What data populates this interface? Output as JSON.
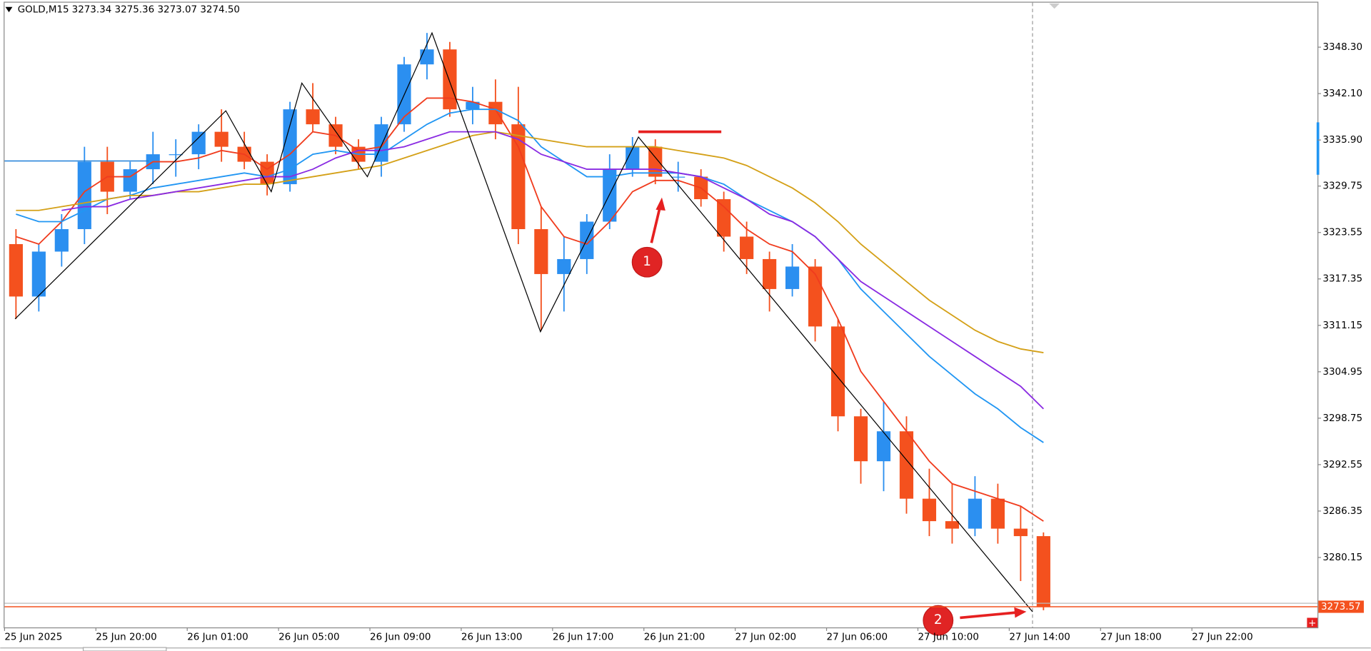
{
  "chart_data": {
    "type": "candlestick",
    "title": "GOLD,M15",
    "ohlc_text": "3273.34 3275.36 3273.07 3274.50",
    "up_color": "#2b8ff0",
    "down_color": "#f4511e",
    "candles": [
      [
        3322,
        3324,
        3312,
        3315
      ],
      [
        3315,
        3322,
        3313,
        3321
      ],
      [
        3321,
        3326,
        3319,
        3324
      ],
      [
        3324,
        3335,
        3322,
        3333
      ],
      [
        3333,
        3335,
        3326,
        3329
      ],
      [
        3329,
        3333,
        3328,
        3332
      ],
      [
        3332,
        3337,
        3330,
        3334
      ],
      [
        3334,
        3336,
        3331,
        3334
      ],
      [
        3334,
        3338,
        3332,
        3337
      ],
      [
        3337,
        3340,
        3333,
        3335
      ],
      [
        3335,
        3337,
        3332,
        3333
      ],
      [
        3333,
        3334,
        3328.5,
        3330
      ],
      [
        3330,
        3341,
        3329,
        3340
      ],
      [
        3340,
        3343.5,
        3337,
        3338
      ],
      [
        3338,
        3339,
        3334,
        3335
      ],
      [
        3335,
        3336,
        3332,
        3333
      ],
      [
        3333,
        3339,
        3331,
        3338
      ],
      [
        3338,
        3347,
        3337,
        3346
      ],
      [
        3346,
        3350.2,
        3344,
        3348
      ],
      [
        3348,
        3349,
        3339,
        3340
      ],
      [
        3340,
        3343,
        3338,
        3341
      ],
      [
        3341,
        3344,
        3336,
        3338
      ],
      [
        3338,
        3343,
        3322,
        3324
      ],
      [
        3324,
        3327,
        3310.5,
        3318
      ],
      [
        3318,
        3323,
        3313,
        3320
      ],
      [
        3320,
        3326,
        3318,
        3325
      ],
      [
        3325,
        3334,
        3324,
        3332
      ],
      [
        3332,
        3336.3,
        3331,
        3335
      ],
      [
        3335,
        3336,
        3330,
        3331
      ],
      [
        3331,
        3333,
        3329,
        3331
      ],
      [
        3331,
        3332,
        3327,
        3328
      ],
      [
        3328,
        3329,
        3321,
        3323
      ],
      [
        3323,
        3325,
        3318,
        3320
      ],
      [
        3320,
        3321,
        3313,
        3316
      ],
      [
        3316,
        3322,
        3315,
        3319
      ],
      [
        3319,
        3320,
        3309,
        3311
      ],
      [
        3311,
        3312,
        3297,
        3299
      ],
      [
        3299,
        3300,
        3290,
        3293
      ],
      [
        3293,
        3301,
        3289,
        3297
      ],
      [
        3297,
        3299,
        3286,
        3288
      ],
      [
        3288,
        3292,
        3283,
        3285
      ],
      [
        3285,
        3290,
        3282,
        3284
      ],
      [
        3284,
        3291,
        3283,
        3288
      ],
      [
        3288,
        3290,
        3282,
        3284
      ],
      [
        3284,
        3287,
        3277,
        3283
      ],
      [
        3283,
        3283.5,
        3273.1,
        3273.6
      ]
    ],
    "series": [
      {
        "color": "#f03c1e",
        "values": [
          3323,
          3322,
          3325,
          3329,
          3331,
          3331,
          3333,
          3333,
          3333.5,
          3334.5,
          3334,
          3332,
          3334,
          3337,
          3336.5,
          3334.5,
          3335,
          3339,
          3341.5,
          3341.5,
          3341,
          3340,
          3335,
          3327,
          3323,
          3322,
          3325,
          3329,
          3330.5,
          3330.5,
          3329.5,
          3327,
          3324,
          3322,
          3321,
          3318,
          3312,
          3305,
          3301,
          3297,
          3293,
          3290,
          3289,
          3288,
          3287,
          3285
        ]
      },
      {
        "color": "#2196f3",
        "values": [
          3326,
          3325,
          3325,
          3326.5,
          3328,
          3328.5,
          3329.5,
          3330,
          3330.5,
          3331,
          3331.5,
          3331,
          3332,
          3334,
          3334.5,
          3334,
          3334,
          3336,
          3338,
          3339.5,
          3340,
          3340,
          3338.5,
          3335,
          3333,
          3331,
          3331,
          3331.5,
          3331.5,
          3331.5,
          3331,
          3330,
          3328,
          3326.5,
          3325,
          3323,
          3320,
          3316,
          3313,
          3310,
          3307,
          3304.5,
          3302,
          3300,
          3297.5,
          3295.5
        ]
      },
      {
        "color": "#d4a017",
        "values": [
          3326.5,
          3326.5,
          3327,
          3327.5,
          3328,
          3328.5,
          3328.5,
          3329,
          3329,
          3329.5,
          3330,
          3330,
          3330.5,
          3331,
          3331.5,
          3332,
          3332.5,
          3333.5,
          3334.5,
          3335.5,
          3336.5,
          3337,
          3336.5,
          3336,
          3335.5,
          3335,
          3335,
          3335,
          3335,
          3334.5,
          3334,
          3333.5,
          3332.5,
          3331,
          3329.5,
          3327.5,
          3325,
          3322,
          3319.5,
          3317,
          3314.5,
          3312.5,
          3310.5,
          3309,
          3308,
          3307.5
        ]
      },
      {
        "color": "#8a2be2",
        "values": [
          null,
          null,
          3326.5,
          3327,
          3327,
          3328,
          3328.5,
          3329,
          3329.5,
          3330,
          3330.5,
          3331,
          3331,
          3332,
          3333.5,
          3334.5,
          3334.5,
          3335,
          3336,
          3337,
          3337,
          3337,
          3336,
          3334,
          3333,
          3332,
          3332,
          3332,
          3332,
          3331.5,
          3331,
          3329.5,
          3328,
          3326,
          3325,
          3323,
          3320,
          3317,
          3315,
          3313,
          3311,
          3309,
          3307,
          3305,
          3303,
          3300
        ]
      }
    ],
    "zigzag": {
      "color": "#000000",
      "x": [
        0.46,
        9.69,
        11.68,
        13.02,
        15.89,
        18.72,
        23.47,
        27.76,
        45.02
      ],
      "values": [
        3312,
        3339.8,
        3329,
        3343.5,
        3331,
        3350.2,
        3310.3,
        3336.3,
        3272.9
      ]
    },
    "levels": [
      {
        "value": 3337,
        "from": 27.76,
        "to": 31.39,
        "color": "#e62020"
      },
      {
        "value": 3333.1,
        "from": 0,
        "to": 6.32,
        "color": "#1e7fd8"
      }
    ],
    "last_price": 3273.57,
    "annotations": [
      "1",
      "2"
    ],
    "xlim": [
      0,
      57.5
    ],
    "ylim": [
      3270.81,
      3354.6
    ],
    "xticks": [
      {
        "value": 0,
        "label": "25 Jun 2025"
      },
      {
        "value": 4,
        "label": "25 Jun 20:00"
      },
      {
        "value": 8,
        "label": "26 Jun 01:00"
      },
      {
        "value": 12,
        "label": "26 Jun 05:00"
      },
      {
        "value": 16,
        "label": "26 Jun 09:00"
      },
      {
        "value": 20,
        "label": "26 Jun 13:00"
      },
      {
        "value": 24,
        "label": "26 Jun 17:00"
      },
      {
        "value": 28,
        "label": "26 Jun 21:00"
      },
      {
        "value": 32,
        "label": "27 Jun 02:00"
      },
      {
        "value": 36,
        "label": "27 Jun 06:00"
      },
      {
        "value": 40,
        "label": "27 Jun 10:00"
      },
      {
        "value": 44,
        "label": "27 Jun 14:00"
      },
      {
        "value": 48,
        "label": "27 Jun 18:00"
      },
      {
        "value": 52,
        "label": "27 Jun 22:00"
      }
    ],
    "yticks": [
      {
        "value": 3348.3,
        "label": "3348.30"
      },
      {
        "value": 3342.1,
        "label": "3342.10"
      },
      {
        "value": 3335.9,
        "label": "3335.90"
      },
      {
        "value": 3329.75,
        "label": "3329.75"
      },
      {
        "value": 3323.55,
        "label": "3323.55"
      },
      {
        "value": 3317.35,
        "label": "3317.35"
      },
      {
        "value": 3311.15,
        "label": "3311.15"
      },
      {
        "value": 3304.95,
        "label": "3304.95"
      },
      {
        "value": 3298.75,
        "label": "3298.75"
      },
      {
        "value": 3292.55,
        "label": "3292.55"
      },
      {
        "value": 3286.35,
        "label": "3286.35"
      },
      {
        "value": 3280.15,
        "label": "3280.15"
      }
    ]
  }
}
